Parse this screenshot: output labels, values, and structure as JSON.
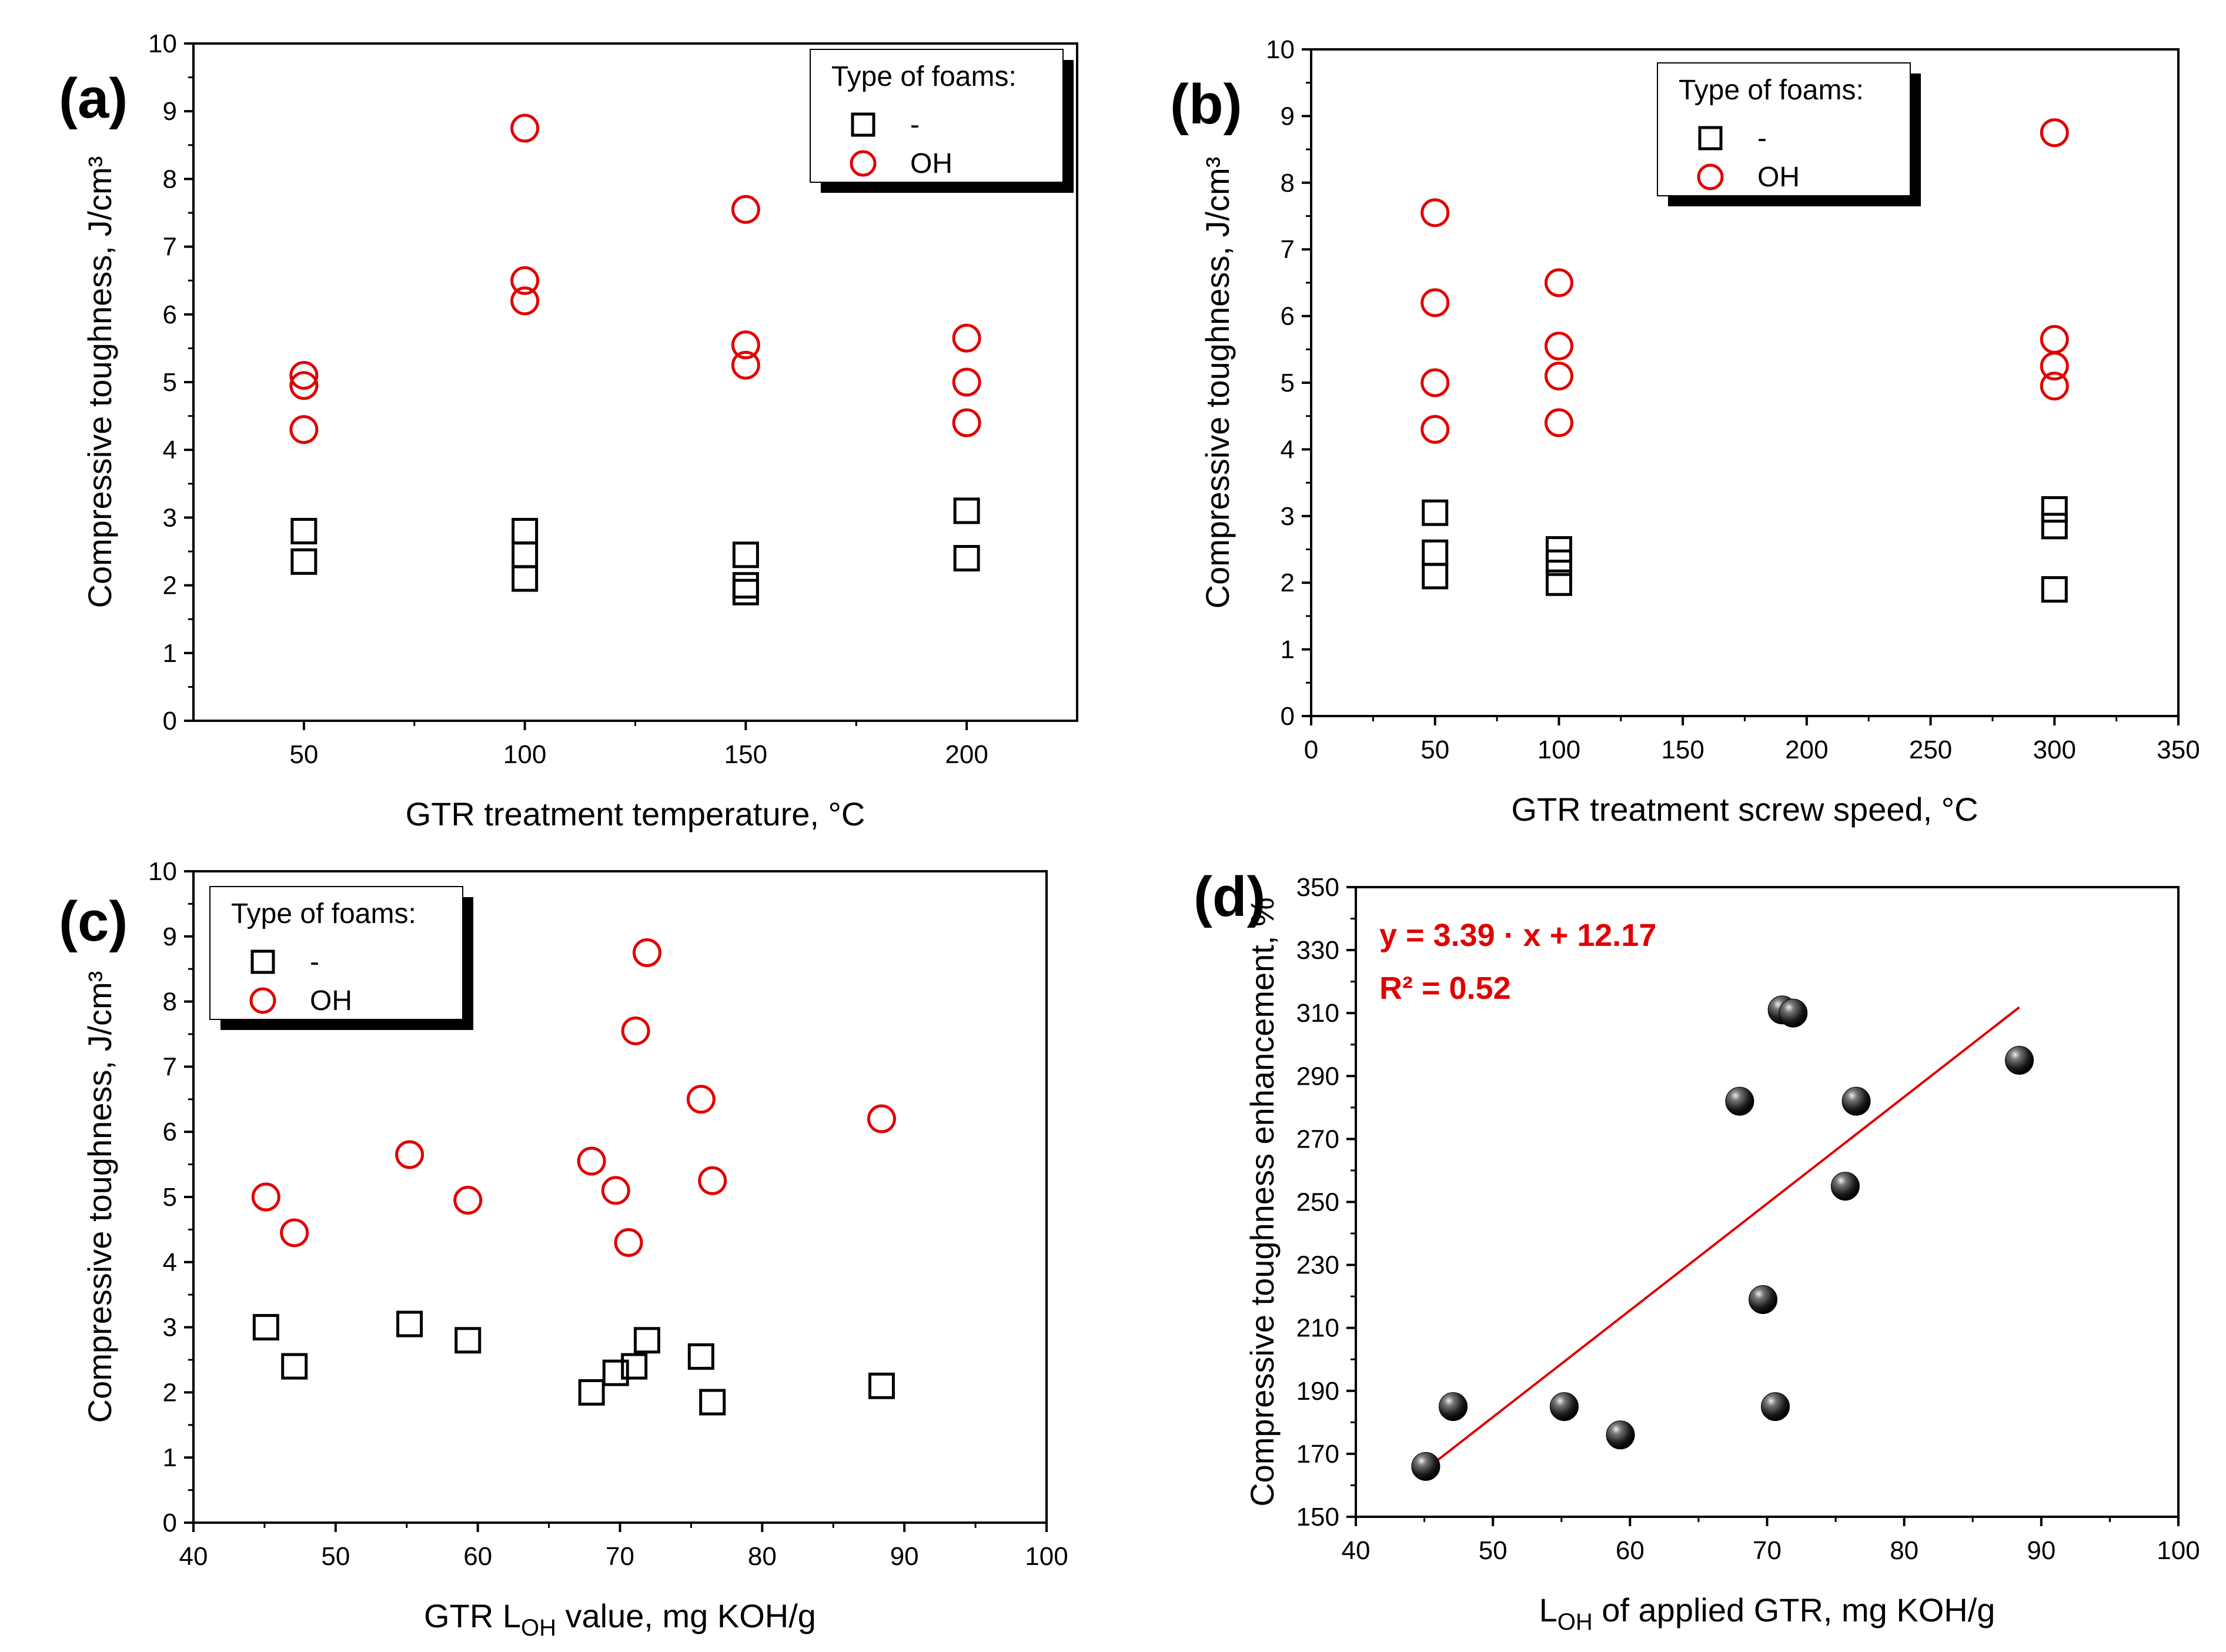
{
  "colors": {
    "series_minus": "#000000",
    "series_oh": "#e00000",
    "fit_line": "#e00000",
    "marker_fill_d": "#111111"
  },
  "chart_data": [
    {
      "panel": "(a)",
      "type": "scatter",
      "xlabel": "GTR treatment temperature, °C",
      "ylabel": "Compressive toughness, J/cm³",
      "xlim": [
        25,
        225
      ],
      "ylim": [
        0,
        10
      ],
      "xticks": [
        50,
        100,
        150,
        200
      ],
      "yticks": [
        0,
        1,
        2,
        3,
        4,
        5,
        6,
        7,
        8,
        9,
        10
      ],
      "grid": false,
      "legend": {
        "title": "Type of foams:",
        "placement": "top-right"
      },
      "series": [
        {
          "name": "-",
          "marker": "square",
          "points": [
            [
              50,
              2.8
            ],
            [
              50,
              2.35
            ],
            [
              100,
              2.8
            ],
            [
              100,
              2.45
            ],
            [
              100,
              2.1
            ],
            [
              150,
              2.45
            ],
            [
              150,
              2.0
            ],
            [
              150,
              1.9
            ],
            [
              200,
              3.1
            ],
            [
              200,
              2.4
            ]
          ]
        },
        {
          "name": "OH",
          "marker": "circle",
          "points": [
            [
              50,
              5.1
            ],
            [
              50,
              4.95
            ],
            [
              50,
              4.3
            ],
            [
              100,
              8.75
            ],
            [
              100,
              6.5
            ],
            [
              100,
              6.2
            ],
            [
              150,
              7.55
            ],
            [
              150,
              5.55
            ],
            [
              150,
              5.25
            ],
            [
              200,
              5.65
            ],
            [
              200,
              5.0
            ],
            [
              200,
              4.4
            ]
          ]
        }
      ]
    },
    {
      "panel": "(b)",
      "type": "scatter",
      "xlabel": "GTR treatment screw speed, °C",
      "ylabel": "Compressive toughness, J/cm³",
      "xlim": [
        0,
        350
      ],
      "ylim": [
        0,
        10
      ],
      "xticks": [
        0,
        50,
        100,
        150,
        200,
        250,
        300,
        350
      ],
      "yticks": [
        0,
        1,
        2,
        3,
        4,
        5,
        6,
        7,
        8,
        9,
        10
      ],
      "grid": false,
      "legend": {
        "title": "Type of foams:",
        "placement": "top-right"
      },
      "series": [
        {
          "name": "-",
          "marker": "square",
          "points": [
            [
              50,
              3.05
            ],
            [
              50,
              2.45
            ],
            [
              50,
              2.1
            ],
            [
              100,
              2.5
            ],
            [
              100,
              2.3
            ],
            [
              100,
              2.0
            ],
            [
              300,
              3.1
            ],
            [
              300,
              2.85
            ],
            [
              300,
              1.9
            ]
          ]
        },
        {
          "name": "OH",
          "marker": "circle",
          "points": [
            [
              50,
              7.55
            ],
            [
              50,
              6.2
            ],
            [
              50,
              5.0
            ],
            [
              50,
              4.3
            ],
            [
              100,
              6.5
            ],
            [
              100,
              5.55
            ],
            [
              100,
              5.1
            ],
            [
              100,
              4.4
            ],
            [
              300,
              8.75
            ],
            [
              300,
              5.65
            ],
            [
              300,
              5.25
            ],
            [
              300,
              4.95
            ]
          ]
        }
      ]
    },
    {
      "panel": "(c)",
      "type": "scatter",
      "xlabel": "GTR L",
      "xlabel_sub": "OH",
      "xlabel_rest": " value, mg KOH/g",
      "ylabel": "Compressive toughness, J/cm³",
      "xlim": [
        40,
        100
      ],
      "ylim": [
        0,
        10
      ],
      "xticks": [
        40,
        50,
        60,
        70,
        80,
        90,
        100
      ],
      "yticks": [
        0,
        1,
        2,
        3,
        4,
        5,
        6,
        7,
        8,
        9,
        10
      ],
      "grid": false,
      "legend": {
        "title": "Type of foams:",
        "placement": "top-left"
      },
      "series": [
        {
          "name": "-",
          "marker": "square",
          "points": [
            [
              45.1,
              3.0
            ],
            [
              47.1,
              2.4
            ],
            [
              55.2,
              3.05
            ],
            [
              59.3,
              2.8
            ],
            [
              68.0,
              2.0
            ],
            [
              69.7,
              2.3
            ],
            [
              71.0,
              2.4
            ],
            [
              71.9,
              2.8
            ],
            [
              75.7,
              2.55
            ],
            [
              76.5,
              1.85
            ],
            [
              88.4,
              2.1
            ]
          ]
        },
        {
          "name": "OH",
          "marker": "circle",
          "points": [
            [
              45.1,
              5.0
            ],
            [
              47.1,
              4.45
            ],
            [
              55.2,
              5.65
            ],
            [
              59.3,
              4.95
            ],
            [
              68.0,
              5.55
            ],
            [
              69.7,
              5.1
            ],
            [
              70.6,
              4.3
            ],
            [
              71.1,
              7.55
            ],
            [
              71.9,
              8.75
            ],
            [
              75.7,
              6.5
            ],
            [
              76.5,
              5.25
            ],
            [
              88.4,
              6.2
            ]
          ]
        }
      ]
    },
    {
      "panel": "(d)",
      "type": "scatter",
      "xlabel": "L",
      "xlabel_sub": "OH",
      "xlabel_rest": " of applied GTR, mg KOH/g",
      "ylabel": "Compressive toughness enhancement, %",
      "xlim": [
        40,
        100
      ],
      "ylim": [
        150,
        350
      ],
      "xticks": [
        40,
        50,
        60,
        70,
        80,
        90,
        100
      ],
      "yticks": [
        150,
        170,
        190,
        210,
        230,
        250,
        270,
        290,
        310,
        330,
        350
      ],
      "grid": false,
      "equation": "y = 3.39 · x + 12.17",
      "r2": "R² = 0.52",
      "fit": {
        "slope": 3.39,
        "intercept": 12.17,
        "x_range": [
          45,
          88.4
        ]
      },
      "series": [
        {
          "marker": "sphere",
          "points": [
            [
              45.1,
              166
            ],
            [
              47.1,
              185
            ],
            [
              55.2,
              185
            ],
            [
              59.3,
              176
            ],
            [
              68.0,
              282
            ],
            [
              69.7,
              219
            ],
            [
              70.6,
              185
            ],
            [
              71.1,
              311
            ],
            [
              71.9,
              310
            ],
            [
              75.7,
              255
            ],
            [
              76.5,
              282
            ],
            [
              88.4,
              295
            ]
          ]
        }
      ]
    }
  ]
}
